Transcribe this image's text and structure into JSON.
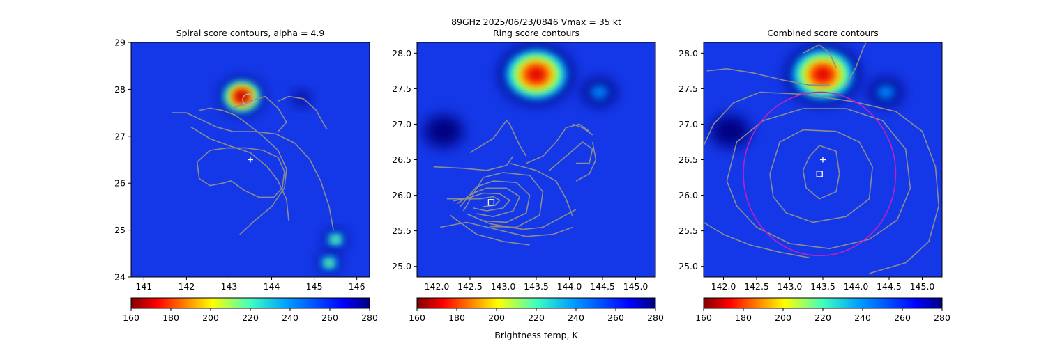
{
  "figure": {
    "suptitle_line1": "89GHz  2025/06/23/0846    Vmax = 35 kt",
    "colorbar_label": "Brightness temp, K"
  },
  "chart_data": [
    {
      "type": "heatmap",
      "title": "Spiral score contours, alpha =  4.9",
      "xlim": [
        140.7,
        146.3
      ],
      "ylim": [
        24,
        29
      ],
      "xticks": [
        141,
        142,
        143,
        144,
        145,
        146
      ],
      "yticks": [
        24,
        25,
        26,
        27,
        28,
        29
      ],
      "colorscale": {
        "colormap": "jet_r",
        "vmin": 160,
        "vmax": 280,
        "ticks": [
          160,
          180,
          200,
          220,
          240,
          260,
          280
        ]
      },
      "cold_cores": [
        {
          "lon": 143.3,
          "lat": 27.85,
          "min_tb": 162,
          "extent": 0.5
        },
        {
          "lon": 145.5,
          "lat": 24.8,
          "min_tb": 200,
          "extent": 0.25
        },
        {
          "lon": 145.35,
          "lat": 24.3,
          "min_tb": 210,
          "extent": 0.25
        },
        {
          "lon": 144.7,
          "lat": 27.8,
          "min_tb": 255,
          "extent": 0.2
        }
      ],
      "markers": [
        {
          "type": "plus",
          "lon": 143.5,
          "lat": 26.5,
          "color": "#ffffff"
        },
        {
          "type": "circle",
          "lon": 143.45,
          "lat": 27.78,
          "color": "#b0b0b0"
        }
      ],
      "contours": [
        [
          [
            143.25,
            24.9
          ],
          [
            143.6,
            25.2
          ],
          [
            144.0,
            25.5
          ],
          [
            144.3,
            25.9
          ],
          [
            144.35,
            26.3
          ],
          [
            144.15,
            26.7
          ],
          [
            143.8,
            27.0
          ],
          [
            143.45,
            27.25
          ],
          [
            143.15,
            27.45
          ],
          [
            142.85,
            27.55
          ],
          [
            142.55,
            27.6
          ],
          [
            142.3,
            27.55
          ]
        ],
        [
          [
            142.1,
            27.2
          ],
          [
            142.55,
            26.95
          ],
          [
            143.0,
            26.8
          ],
          [
            143.5,
            26.65
          ],
          [
            143.9,
            26.35
          ],
          [
            144.15,
            26.05
          ],
          [
            144.35,
            25.65
          ],
          [
            144.4,
            25.2
          ]
        ],
        [
          [
            143.05,
            26.05
          ],
          [
            142.85,
            26.0
          ],
          [
            142.55,
            25.95
          ],
          [
            142.3,
            26.1
          ],
          [
            142.25,
            26.45
          ],
          [
            142.55,
            26.7
          ],
          [
            142.95,
            26.75
          ],
          [
            143.4,
            26.75
          ],
          [
            143.8,
            26.7
          ],
          [
            144.15,
            26.55
          ],
          [
            144.3,
            26.25
          ],
          [
            144.25,
            25.9
          ],
          [
            144.05,
            25.7
          ],
          [
            143.7,
            25.7
          ],
          [
            143.35,
            25.85
          ],
          [
            143.05,
            26.05
          ]
        ],
        [
          [
            141.65,
            27.5
          ],
          [
            142.0,
            27.5
          ],
          [
            142.35,
            27.35
          ],
          [
            142.7,
            27.2
          ],
          [
            143.1,
            27.1
          ],
          [
            143.6,
            27.1
          ],
          [
            144.1,
            27.05
          ],
          [
            144.55,
            26.85
          ],
          [
            144.9,
            26.5
          ],
          [
            145.15,
            26.05
          ],
          [
            145.35,
            25.5
          ],
          [
            145.45,
            25.0
          ]
        ],
        [
          [
            143.1,
            27.6
          ],
          [
            143.5,
            27.75
          ],
          [
            143.85,
            27.85
          ],
          [
            144.15,
            27.6
          ],
          [
            144.35,
            27.3
          ],
          [
            144.15,
            27.1
          ]
        ],
        [
          [
            144.15,
            27.75
          ],
          [
            144.4,
            27.85
          ],
          [
            144.75,
            27.8
          ],
          [
            145.05,
            27.55
          ],
          [
            145.2,
            27.3
          ],
          [
            145.3,
            27.15
          ]
        ]
      ]
    },
    {
      "type": "heatmap",
      "title": "Ring score contours",
      "xlim": [
        141.7,
        145.3
      ],
      "ylim": [
        24.85,
        28.15
      ],
      "xticks": [
        142.0,
        142.5,
        143.0,
        143.5,
        144.0,
        144.5,
        145.0
      ],
      "yticks": [
        25.0,
        25.5,
        26.0,
        26.5,
        27.0,
        27.5,
        28.0
      ],
      "colorscale": {
        "colormap": "jet_r",
        "vmin": 160,
        "vmax": 280,
        "ticks": [
          160,
          180,
          200,
          220,
          240,
          260,
          280
        ]
      },
      "cold_cores": [
        {
          "lon": 143.5,
          "lat": 27.7,
          "min_tb": 165,
          "extent": 0.55
        },
        {
          "lon": 144.45,
          "lat": 27.45,
          "min_tb": 250,
          "extent": 0.25
        },
        {
          "lon": 142.1,
          "lat": 26.9,
          "min_tb": 262,
          "extent": 0.3
        }
      ],
      "markers": [
        {
          "type": "square",
          "lon": 142.82,
          "lat": 25.9,
          "color": "#ffffff"
        }
      ],
      "contours": [
        [
          [
            142.15,
            25.95
          ],
          [
            142.4,
            25.95
          ],
          [
            142.65,
            25.95
          ],
          [
            142.85,
            25.98
          ],
          [
            142.95,
            25.93
          ],
          [
            142.88,
            25.86
          ],
          [
            142.7,
            25.84
          ]
        ],
        [
          [
            142.25,
            25.92
          ],
          [
            142.5,
            25.97
          ],
          [
            142.7,
            26.03
          ],
          [
            142.95,
            26.02
          ],
          [
            143.1,
            25.93
          ],
          [
            143.0,
            25.82
          ],
          [
            142.75,
            25.78
          ],
          [
            142.55,
            25.82
          ]
        ],
        [
          [
            142.3,
            25.88
          ],
          [
            142.55,
            26.03
          ],
          [
            142.75,
            26.1
          ],
          [
            143.05,
            26.1
          ],
          [
            143.25,
            25.98
          ],
          [
            143.15,
            25.78
          ],
          [
            142.85,
            25.7
          ],
          [
            142.6,
            25.74
          ]
        ],
        [
          [
            142.35,
            25.84
          ],
          [
            142.6,
            26.12
          ],
          [
            142.85,
            26.2
          ],
          [
            143.2,
            26.18
          ],
          [
            143.4,
            26.0
          ],
          [
            143.35,
            25.75
          ],
          [
            143.05,
            25.62
          ],
          [
            142.7,
            25.64
          ]
        ],
        [
          [
            142.4,
            25.78
          ],
          [
            142.7,
            26.25
          ],
          [
            143.0,
            26.32
          ],
          [
            143.4,
            26.28
          ],
          [
            143.6,
            26.05
          ],
          [
            143.55,
            25.72
          ],
          [
            143.2,
            25.55
          ],
          [
            142.8,
            25.56
          ]
        ],
        [
          [
            142.45,
            25.74
          ],
          [
            142.8,
            25.6
          ],
          [
            143.3,
            25.52
          ],
          [
            143.6,
            25.55
          ],
          [
            143.9,
            25.7
          ],
          [
            144.1,
            25.8
          ]
        ],
        [
          [
            143.1,
            26.45
          ],
          [
            143.5,
            26.35
          ],
          [
            143.8,
            26.2
          ],
          [
            143.95,
            25.95
          ],
          [
            144.05,
            25.7
          ]
        ],
        [
          [
            141.95,
            26.4
          ],
          [
            142.4,
            26.38
          ],
          [
            142.75,
            26.35
          ],
          [
            143.05,
            26.42
          ],
          [
            143.15,
            26.55
          ]
        ],
        [
          [
            142.05,
            25.55
          ],
          [
            142.45,
            25.62
          ],
          [
            142.9,
            25.52
          ],
          [
            143.35,
            25.42
          ],
          [
            143.75,
            25.45
          ],
          [
            144.05,
            25.55
          ]
        ],
        [
          [
            142.5,
            26.6
          ],
          [
            142.85,
            26.8
          ],
          [
            143.05,
            27.05
          ],
          [
            143.1,
            27.0
          ],
          [
            143.25,
            26.7
          ],
          [
            143.35,
            26.55
          ]
        ],
        [
          [
            143.35,
            26.45
          ],
          [
            143.6,
            26.55
          ],
          [
            143.8,
            26.75
          ],
          [
            143.95,
            26.95
          ],
          [
            144.15,
            27.0
          ],
          [
            144.3,
            26.9
          ]
        ],
        [
          [
            143.7,
            26.35
          ],
          [
            143.95,
            26.55
          ],
          [
            144.2,
            26.75
          ],
          [
            144.35,
            26.65
          ],
          [
            144.3,
            26.45
          ],
          [
            144.1,
            26.45
          ]
        ],
        [
          [
            144.1,
            26.2
          ],
          [
            144.3,
            26.3
          ],
          [
            144.4,
            26.5
          ],
          [
            144.35,
            26.75
          ]
        ],
        [
          [
            144.05,
            27.0
          ],
          [
            144.2,
            26.95
          ],
          [
            144.35,
            26.85
          ]
        ],
        [
          [
            142.2,
            25.72
          ],
          [
            142.6,
            25.45
          ],
          [
            143.0,
            25.35
          ],
          [
            143.4,
            25.3
          ]
        ]
      ]
    },
    {
      "type": "heatmap",
      "title": "Combined score contours",
      "xlim": [
        141.7,
        145.3
      ],
      "ylim": [
        24.85,
        28.15
      ],
      "xticks": [
        142.0,
        142.5,
        143.0,
        143.5,
        144.0,
        144.5,
        145.0
      ],
      "yticks": [
        25.0,
        25.5,
        26.0,
        26.5,
        27.0,
        27.5,
        28.0
      ],
      "colorscale": {
        "colormap": "jet_r",
        "vmin": 160,
        "vmax": 280,
        "ticks": [
          160,
          180,
          200,
          220,
          240,
          260,
          280
        ]
      },
      "cold_cores": [
        {
          "lon": 143.5,
          "lat": 27.7,
          "min_tb": 165,
          "extent": 0.55
        },
        {
          "lon": 144.45,
          "lat": 27.45,
          "min_tb": 250,
          "extent": 0.25
        },
        {
          "lon": 142.1,
          "lat": 26.9,
          "min_tb": 262,
          "extent": 0.3
        }
      ],
      "markers": [
        {
          "type": "plus",
          "lon": 143.5,
          "lat": 26.5,
          "color": "#ffffff"
        },
        {
          "type": "square",
          "lon": 143.45,
          "lat": 26.3,
          "color": "#ffffff"
        },
        {
          "type": "ring",
          "lon": 143.45,
          "lat": 26.3,
          "radius": 1.15,
          "color": "#c020c0"
        }
      ],
      "contours": [
        [
          [
            143.3,
            26.55
          ],
          [
            143.45,
            26.7
          ],
          [
            143.7,
            26.62
          ],
          [
            143.75,
            26.3
          ],
          [
            143.7,
            26.05
          ],
          [
            143.45,
            25.95
          ],
          [
            143.25,
            26.1
          ],
          [
            143.2,
            26.35
          ],
          [
            143.3,
            26.55
          ]
        ],
        [
          [
            142.7,
            26.3
          ],
          [
            142.85,
            26.75
          ],
          [
            143.2,
            26.92
          ],
          [
            143.7,
            26.9
          ],
          [
            144.05,
            26.75
          ],
          [
            144.25,
            26.4
          ],
          [
            144.2,
            25.95
          ],
          [
            143.85,
            25.7
          ],
          [
            143.35,
            25.62
          ],
          [
            142.95,
            25.75
          ],
          [
            142.75,
            25.98
          ],
          [
            142.7,
            26.3
          ]
        ],
        [
          [
            142.05,
            26.2
          ],
          [
            142.2,
            26.75
          ],
          [
            142.6,
            27.05
          ],
          [
            143.2,
            27.22
          ],
          [
            143.85,
            27.22
          ],
          [
            144.4,
            27.05
          ],
          [
            144.75,
            26.65
          ],
          [
            144.82,
            26.1
          ],
          [
            144.62,
            25.65
          ],
          [
            144.2,
            25.38
          ],
          [
            143.6,
            25.25
          ],
          [
            143.0,
            25.32
          ],
          [
            142.5,
            25.55
          ],
          [
            142.2,
            25.85
          ],
          [
            142.05,
            26.2
          ]
        ],
        [
          [
            141.7,
            26.7
          ],
          [
            141.85,
            27.0
          ],
          [
            142.15,
            27.3
          ],
          [
            142.55,
            27.45
          ],
          [
            143.2,
            27.42
          ],
          [
            143.95,
            27.32
          ],
          [
            144.6,
            27.18
          ],
          [
            145.0,
            26.9
          ],
          [
            145.2,
            26.4
          ],
          [
            145.25,
            25.85
          ],
          [
            145.1,
            25.35
          ],
          [
            144.75,
            25.05
          ],
          [
            144.2,
            24.9
          ]
        ],
        [
          [
            141.7,
            25.62
          ],
          [
            142.0,
            25.45
          ],
          [
            142.4,
            25.3
          ],
          [
            142.85,
            25.2
          ],
          [
            143.3,
            25.12
          ]
        ],
        [
          [
            141.75,
            27.75
          ],
          [
            142.05,
            27.78
          ],
          [
            142.45,
            27.72
          ],
          [
            142.9,
            27.62
          ],
          [
            143.3,
            27.55
          ],
          [
            143.6,
            27.55
          ]
        ],
        [
          [
            143.2,
            28.0
          ],
          [
            143.45,
            28.12
          ],
          [
            143.6,
            28.0
          ],
          [
            143.7,
            27.8
          ]
        ],
        [
          [
            143.85,
            27.55
          ],
          [
            144.0,
            27.8
          ],
          [
            144.1,
            28.05
          ],
          [
            144.15,
            28.15
          ]
        ]
      ]
    }
  ]
}
